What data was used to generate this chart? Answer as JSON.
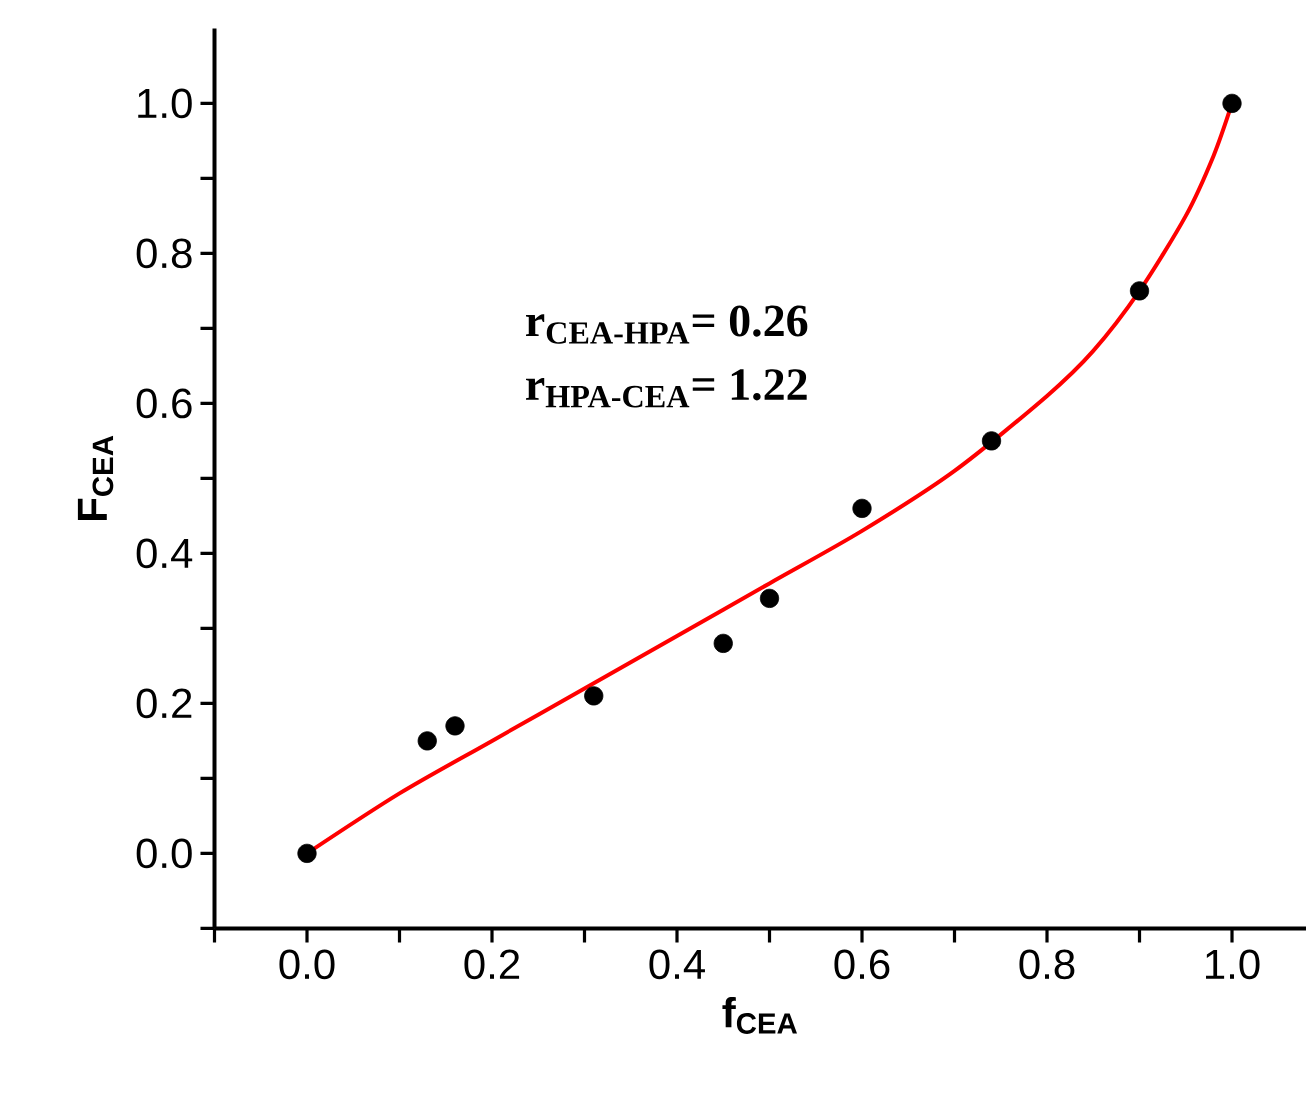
{
  "chart_data": {
    "type": "scatter",
    "xlabel": "f$_{CEA}$",
    "ylabel": "F$_{CEA}$",
    "annotations": [
      "r$_{CEA-HPA}$= 0.26",
      "r$_{HPA-CEA}$= 1.22"
    ],
    "xlim": [
      -0.1,
      1.08
    ],
    "ylim": [
      -0.1,
      1.1
    ],
    "xticks": [
      {
        "value": -0.1,
        "label": null
      },
      {
        "value": 0,
        "label": "0.0"
      },
      {
        "value": 0.1,
        "label": null
      },
      {
        "value": 0.2,
        "label": "0.2"
      },
      {
        "value": 0.3,
        "label": null
      },
      {
        "value": 0.4,
        "label": "0.4"
      },
      {
        "value": 0.5,
        "label": null
      },
      {
        "value": 0.6,
        "label": "0.6"
      },
      {
        "value": 0.7,
        "label": null
      },
      {
        "value": 0.8,
        "label": "0.8"
      },
      {
        "value": 0.9,
        "label": null
      },
      {
        "value": 1.0,
        "label": "1.0"
      }
    ],
    "yticks": [
      {
        "value": -0.1,
        "label": null
      },
      {
        "value": 0,
        "label": "0.0"
      },
      {
        "value": 0.1,
        "label": null
      },
      {
        "value": 0.2,
        "label": "0.2"
      },
      {
        "value": 0.3,
        "label": null
      },
      {
        "value": 0.4,
        "label": "0.4"
      },
      {
        "value": 0.5,
        "label": null
      },
      {
        "value": 0.6,
        "label": "0.6"
      },
      {
        "value": 0.7,
        "label": null
      },
      {
        "value": 0.8,
        "label": "0.8"
      },
      {
        "value": 0.9,
        "label": null
      },
      {
        "value": 1.0,
        "label": "1.0"
      }
    ],
    "grid": false,
    "marker": "circle",
    "series": [
      {
        "color": "#000000",
        "x": [
          0,
          0.13,
          0.16,
          0.31,
          0.45,
          0.5,
          0.6,
          0.74,
          0.9,
          1.0
        ],
        "values": [
          0,
          0.15,
          0.17,
          0.21,
          0.28,
          0.34,
          0.46,
          0.55,
          0.75,
          1.0
        ]
      },
      {
        "type": "line",
        "color": "#ff0000",
        "marker": "none",
        "line_style": "solid",
        "x": [
          0,
          0.1,
          0.2,
          0.3,
          0.4,
          0.5,
          0.6,
          0.7,
          0.8,
          0.85,
          0.9,
          0.95,
          0.98,
          1.0
        ],
        "values": [
          0,
          0.08,
          0.15,
          0.22,
          0.29,
          0.36,
          0.43,
          0.51,
          0.61,
          0.67,
          0.75,
          0.85,
          0.93,
          1.0
        ]
      }
    ]
  }
}
